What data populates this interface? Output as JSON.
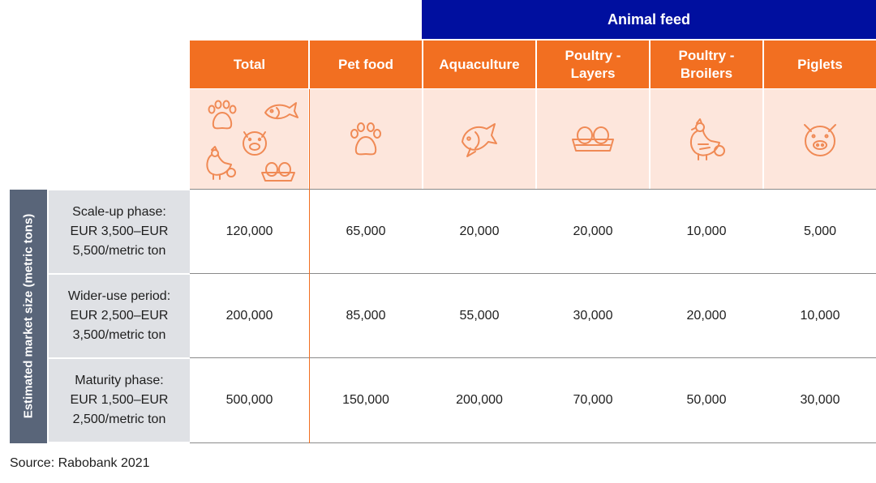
{
  "chart_data": {
    "type": "table",
    "group_header": "Animal feed",
    "columns": [
      "Total",
      "Pet food",
      "Aquaculture",
      "Poultry - Layers",
      "Poultry - Broilers",
      "Piglets"
    ],
    "column_lines": [
      [
        "Total"
      ],
      [
        "Pet food"
      ],
      [
        "Aquaculture"
      ],
      [
        "Poultry -",
        "Layers"
      ],
      [
        "Poultry -",
        "Broilers"
      ],
      [
        "Piglets"
      ]
    ],
    "row_axis_label": "Estimated market size (metric tons)",
    "rows": [
      {
        "label_lines": [
          "Scale-up phase:",
          "EUR 3,500–EUR",
          "5,500/metric ton"
        ],
        "values": [
          "120,000",
          "65,000",
          "20,000",
          "20,000",
          "10,000",
          "5,000"
        ]
      },
      {
        "label_lines": [
          "Wider-use period:",
          "EUR 2,500–EUR",
          "3,500/metric ton"
        ],
        "values": [
          "200,000",
          "85,000",
          "55,000",
          "30,000",
          "20,000",
          "10,000"
        ]
      },
      {
        "label_lines": [
          "Maturity phase:",
          "EUR 1,500–EUR",
          "2,500/metric ton"
        ],
        "values": [
          "500,000",
          "150,000",
          "200,000",
          "70,000",
          "50,000",
          "30,000"
        ]
      }
    ],
    "source": "Source: Rabobank 2021"
  },
  "icons": {
    "total": [
      "paw-icon",
      "fish-icon",
      "pig-icon",
      "chicken-icon",
      "eggs-icon"
    ],
    "pet_food": "paw-icon",
    "aquaculture": "fish-icon",
    "layers": "eggs-icon",
    "broilers": "chicken-icon",
    "piglets": "pig-icon"
  },
  "colors": {
    "header_orange": "#f26f21",
    "banner_blue": "#000f9f",
    "icon_band": "#fde6dc",
    "side_label": "#596579",
    "row_label_bg": "#dfe1e5"
  }
}
